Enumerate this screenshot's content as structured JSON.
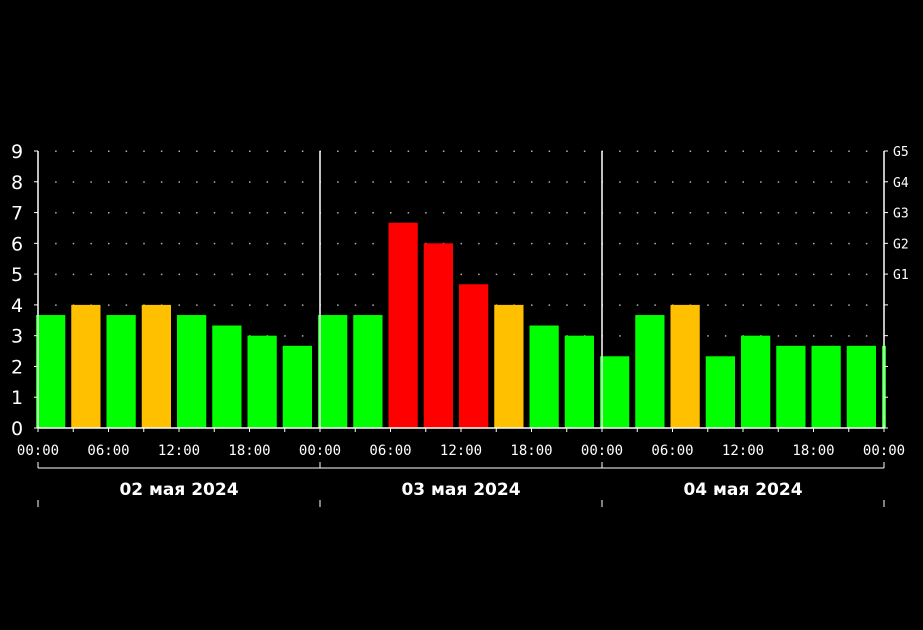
{
  "chart_data": {
    "type": "bar",
    "title": "",
    "xlabel": "",
    "ylabel": "",
    "ylim": [
      0,
      9
    ],
    "y_ticks": [
      "0",
      "1",
      "2",
      "3",
      "4",
      "5",
      "6",
      "7",
      "8",
      "9"
    ],
    "g_levels": [
      {
        "label": "G1",
        "value": 5
      },
      {
        "label": "G2",
        "value": 6
      },
      {
        "label": "G3",
        "value": 7
      },
      {
        "label": "G4",
        "value": 8
      },
      {
        "label": "G5",
        "value": 9
      }
    ],
    "x_tick_labels": [
      "00:00",
      "06:00",
      "12:00",
      "18:00",
      "00:00",
      "06:00",
      "12:00",
      "18:00",
      "00:00",
      "06:00",
      "12:00",
      "18:00",
      "00:00"
    ],
    "days": [
      "02 мая 2024",
      "03 мая 2024",
      "04 мая 2024"
    ],
    "interval_hours": 3,
    "grid": true,
    "colors": {
      "green": "#00ff00",
      "orange": "#ffc000",
      "red": "#ff0000",
      "background": "#000000",
      "axis": "#ffffff"
    },
    "values": [
      3.67,
      4.0,
      3.67,
      4.0,
      3.67,
      3.33,
      3.0,
      2.67,
      3.67,
      3.67,
      6.67,
      6.0,
      4.67,
      4.0,
      3.33,
      3.0,
      2.33,
      3.67,
      4.0,
      2.33,
      3.0,
      2.67,
      2.67,
      2.67,
      2.67
    ],
    "bar_colors": [
      "green",
      "orange",
      "green",
      "orange",
      "green",
      "green",
      "green",
      "green",
      "green",
      "green",
      "red",
      "red",
      "red",
      "orange",
      "green",
      "green",
      "green",
      "green",
      "orange",
      "green",
      "green",
      "green",
      "green",
      "green",
      "green"
    ]
  }
}
